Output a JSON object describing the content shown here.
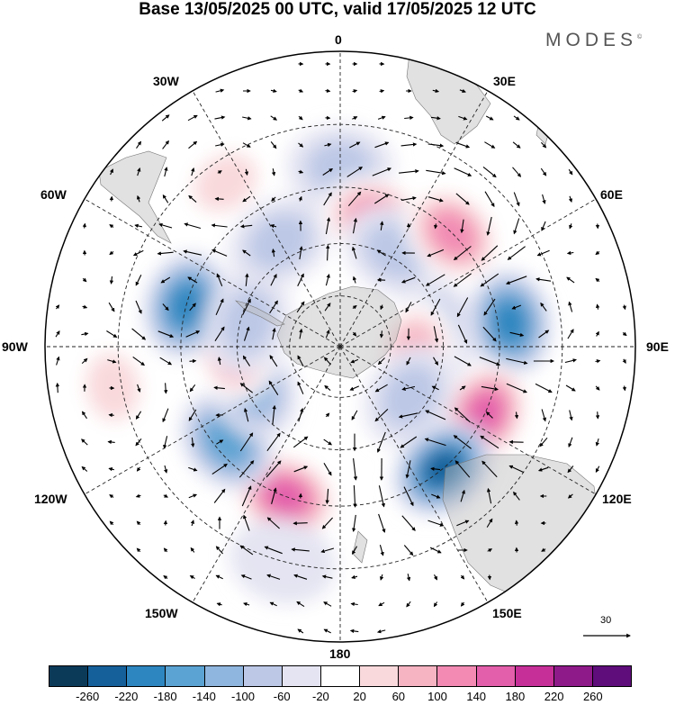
{
  "title": "Base 13/05/2025 00 UTC, valid 17/05/2025 12 UTC",
  "brand": "MODES",
  "brand_mark": "©",
  "longitude_labels": {
    "lon0": "0",
    "lon30e": "30E",
    "lon60e": "60E",
    "lon90e": "90E",
    "lon120e": "120E",
    "lon150e": "150E",
    "lon180": "180",
    "lon150w": "150W",
    "lon120w": "120W",
    "lon90w": "90W",
    "lon60w": "60W",
    "lon30w": "30W"
  },
  "wind_scale_label": "30",
  "colorbar": {
    "colors": [
      "#0b3a59",
      "#15609a",
      "#2d86c0",
      "#5ba3d3",
      "#8fb6de",
      "#bcc8e6",
      "#e4e4f2",
      "#ffffff",
      "#f9d9dc",
      "#f6b3c2",
      "#f28ab3",
      "#e35fab",
      "#c62f98",
      "#8e1a89",
      "#5f0d7b"
    ],
    "ticks": [
      "-260",
      "-220",
      "-180",
      "-140",
      "-100",
      "-60",
      "-20",
      "20",
      "60",
      "100",
      "140",
      "180",
      "220",
      "260"
    ]
  },
  "map_data": {
    "projection": "south-polar-stereographic",
    "field": "geopotential height anomaly with wind vectors",
    "anomaly_centers": [
      {
        "lon": 0,
        "lat": -40,
        "value": -60
      },
      {
        "lon": -35,
        "lat": -35,
        "value": 80
      },
      {
        "lon": -30,
        "lat": -55,
        "value": -80
      },
      {
        "lon": 15,
        "lat": -52,
        "value": 150
      },
      {
        "lon": 30,
        "lat": -58,
        "value": -60
      },
      {
        "lon": 45,
        "lat": -45,
        "value": 150
      },
      {
        "lon": 82,
        "lat": -42,
        "value": -200
      },
      {
        "lon": 80,
        "lat": -62,
        "value": -80
      },
      {
        "lon": 95,
        "lat": -68,
        "value": 100
      },
      {
        "lon": 115,
        "lat": -45,
        "value": 180
      },
      {
        "lon": 140,
        "lat": -45,
        "value": -240
      },
      {
        "lon": 125,
        "lat": -65,
        "value": -80
      },
      {
        "lon": -160,
        "lat": -45,
        "value": 180
      },
      {
        "lon": -130,
        "lat": -48,
        "value": -160
      },
      {
        "lon": -115,
        "lat": -62,
        "value": -100
      },
      {
        "lon": -90,
        "lat": -60,
        "value": 140
      },
      {
        "lon": -75,
        "lat": -45,
        "value": -200
      },
      {
        "lon": -75,
        "lat": -62,
        "value": -60
      },
      {
        "lon": -100,
        "lat": -28,
        "value": 60
      },
      {
        "lon": 175,
        "lat": -25,
        "value": 40
      },
      {
        "lon": -165,
        "lat": -30,
        "value": -40
      }
    ]
  }
}
